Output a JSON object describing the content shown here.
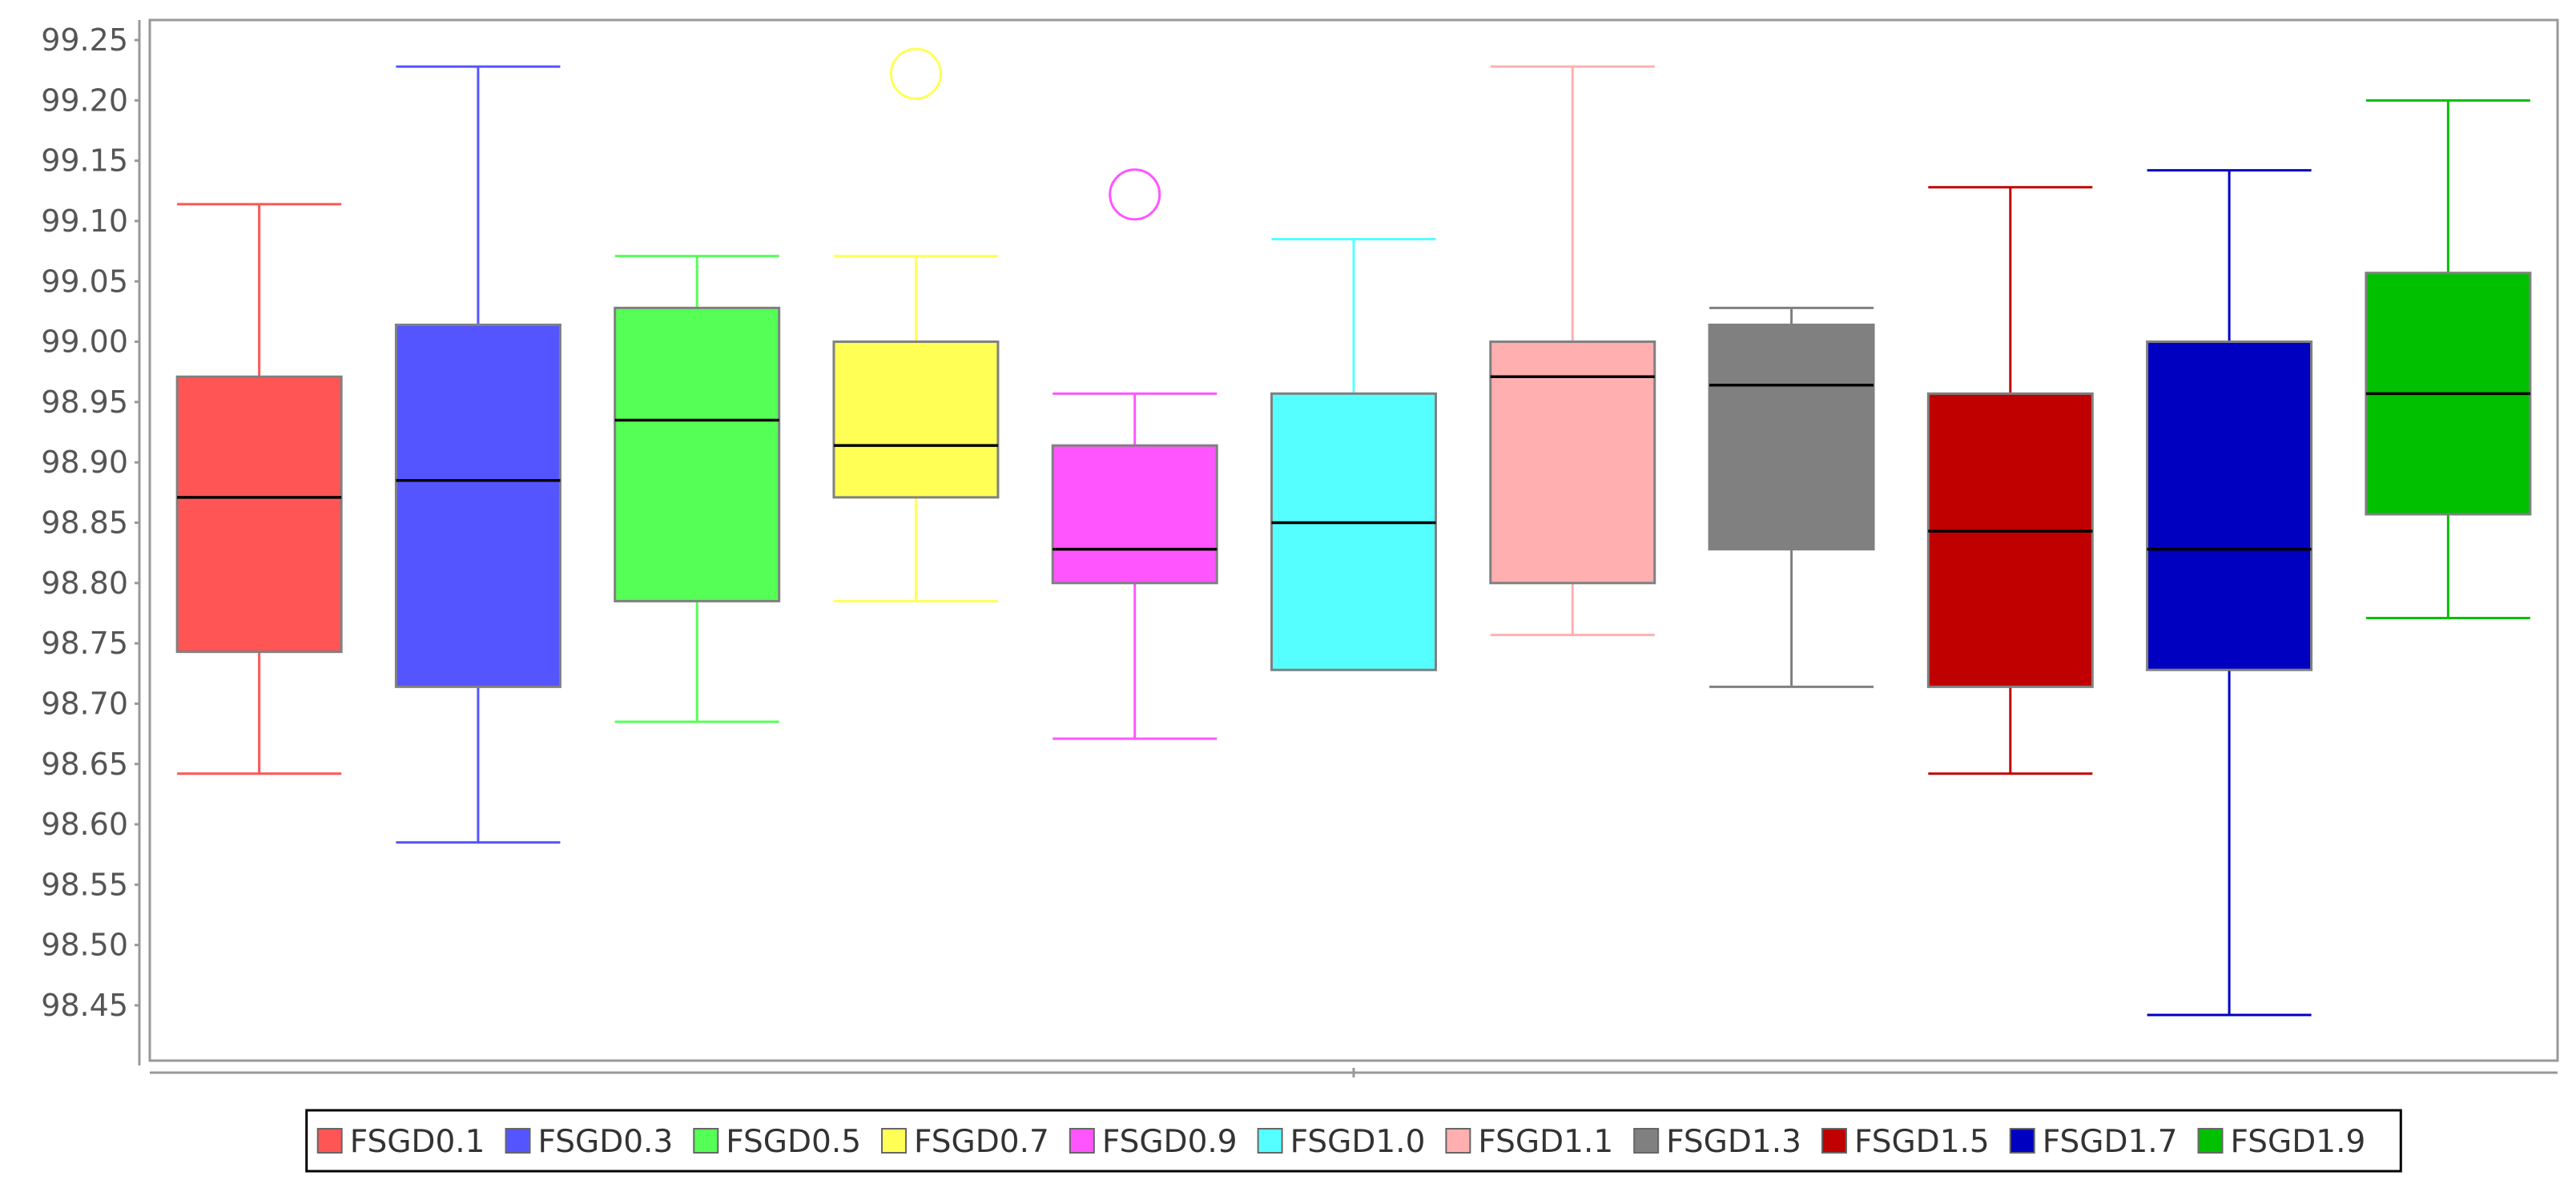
{
  "chart_data": {
    "type": "box",
    "title": "",
    "xlabel": "",
    "ylabel": "",
    "ylim": [
      98.41,
      99.27
    ],
    "yticks": [
      "98.45",
      "98.50",
      "98.55",
      "98.60",
      "98.65",
      "98.70",
      "98.75",
      "98.80",
      "98.85",
      "98.90",
      "98.95",
      "99.00",
      "99.05",
      "99.10",
      "99.15",
      "99.20",
      "99.25"
    ],
    "grid": false,
    "legend_position": "bottom",
    "series": [
      {
        "name": "FSGD0.1",
        "color": "#ff5555",
        "min": 98.642,
        "q1": 98.743,
        "median": 98.871,
        "q3": 98.971,
        "max": 99.114,
        "outliers": []
      },
      {
        "name": "FSGD0.3",
        "color": "#5555ff",
        "min": 98.585,
        "q1": 98.714,
        "median": 98.885,
        "q3": 99.014,
        "max": 99.228,
        "outliers": []
      },
      {
        "name": "FSGD0.5",
        "color": "#55ff55",
        "min": 98.685,
        "q1": 98.785,
        "median": 98.935,
        "q3": 99.028,
        "max": 99.071,
        "outliers": []
      },
      {
        "name": "FSGD0.7",
        "color": "#ffff55",
        "min": 98.785,
        "q1": 98.871,
        "median": 98.914,
        "q3": 99.0,
        "max": 99.071,
        "outliers": [
          99.222
        ]
      },
      {
        "name": "FSGD0.9",
        "color": "#ff55ff",
        "min": 98.671,
        "q1": 98.8,
        "median": 98.828,
        "q3": 98.914,
        "max": 98.957,
        "outliers": [
          99.122
        ]
      },
      {
        "name": "FSGD1.0",
        "color": "#55ffff",
        "min": 98.728,
        "q1": 98.728,
        "median": 98.85,
        "q3": 98.957,
        "max": 99.085,
        "outliers": []
      },
      {
        "name": "FSGD1.1",
        "color": "#ffafaf",
        "min": 98.757,
        "q1": 98.8,
        "median": 98.971,
        "q3": 99.0,
        "max": 99.228,
        "outliers": []
      },
      {
        "name": "FSGD1.3",
        "color": "#808080",
        "min": 98.714,
        "q1": 98.828,
        "median": 98.964,
        "q3": 99.014,
        "max": 99.028,
        "outliers": []
      },
      {
        "name": "FSGD1.5",
        "color": "#c00000",
        "min": 98.642,
        "q1": 98.714,
        "median": 98.843,
        "q3": 98.957,
        "max": 99.128,
        "outliers": []
      },
      {
        "name": "FSGD1.7",
        "color": "#0000c0",
        "min": 98.442,
        "q1": 98.728,
        "median": 98.828,
        "q3": 99.0,
        "max": 99.142,
        "outliers": []
      },
      {
        "name": "FSGD1.9",
        "color": "#00c000",
        "min": 98.771,
        "q1": 98.857,
        "median": 98.957,
        "q3": 99.057,
        "max": 99.2,
        "outliers": []
      }
    ]
  }
}
